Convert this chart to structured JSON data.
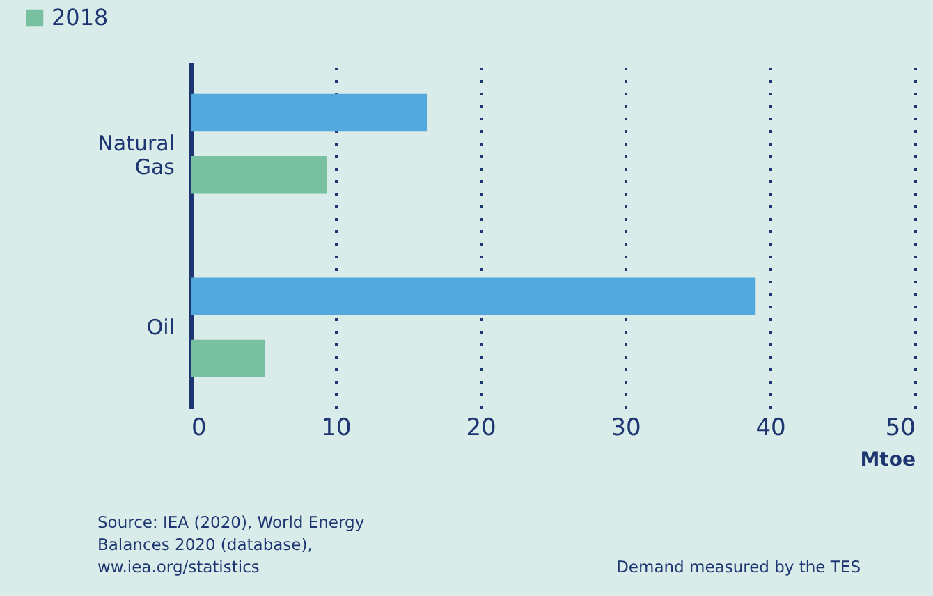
{
  "chart_data": {
    "type": "bar",
    "orientation": "horizontal",
    "categories": [
      "Natural Gas",
      "Oil"
    ],
    "series": [
      {
        "color": "#53a8dd",
        "values": [
          16.3,
          39.0
        ]
      },
      {
        "name": "2018",
        "color": "#79c0a0",
        "values": [
          9.4,
          5.1
        ]
      }
    ],
    "xlim": [
      0,
      50
    ],
    "xticks": [
      0,
      10,
      20,
      30,
      40,
      50
    ],
    "xlabel": "Mtoe",
    "grid": "x",
    "legend": "top left",
    "annotations": [
      "Source: IEA (2020), World Energy Balances 2020 (database), ww.iea.org/statistics",
      "Demand measured by the TES"
    ]
  }
}
